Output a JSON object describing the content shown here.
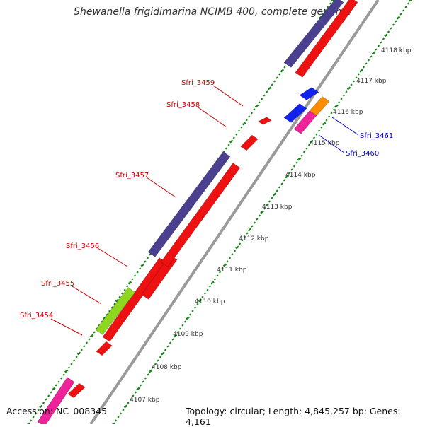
{
  "title": "Shewanella frigidimarina NCIMB 400, complete genome",
  "accession": "Accession: NC_008345",
  "summary": "Topology: circular; Length: 4,845,257 bp; Genes: 4,161",
  "ticks": [
    "4107 kbp",
    "4108 kbp",
    "4109 kbp",
    "4110 kbp",
    "4111 kbp",
    "4112 kbp",
    "4113 kbp",
    "4114 kbp",
    "4115 kbp",
    "4116 kbp",
    "4117 kbp",
    "4118 kbp"
  ],
  "gene_labels": [
    {
      "text": "Sfri_3454",
      "color": "#cc0000"
    },
    {
      "text": "Sfri_3455",
      "color": "#cc0000"
    },
    {
      "text": "Sfri_3456",
      "color": "#cc0000"
    },
    {
      "text": "Sfri_3457",
      "color": "#cc0000"
    },
    {
      "text": "Sfri_3458",
      "color": "#cc0000"
    },
    {
      "text": "Sfri_3459",
      "color": "#cc0000"
    },
    {
      "text": "Sfri_3460",
      "color": "#0000cc"
    },
    {
      "text": "Sfri_3461",
      "color": "#0000cc"
    }
  ],
  "colors": {
    "cds": "#ee1111",
    "rna": "#4b3f8f",
    "green": "#8fd61f",
    "magenta": "#ee2299",
    "blue": "#1122ee",
    "orange": "#ff8c00",
    "tick": "#118811",
    "backbone": "#999999"
  }
}
